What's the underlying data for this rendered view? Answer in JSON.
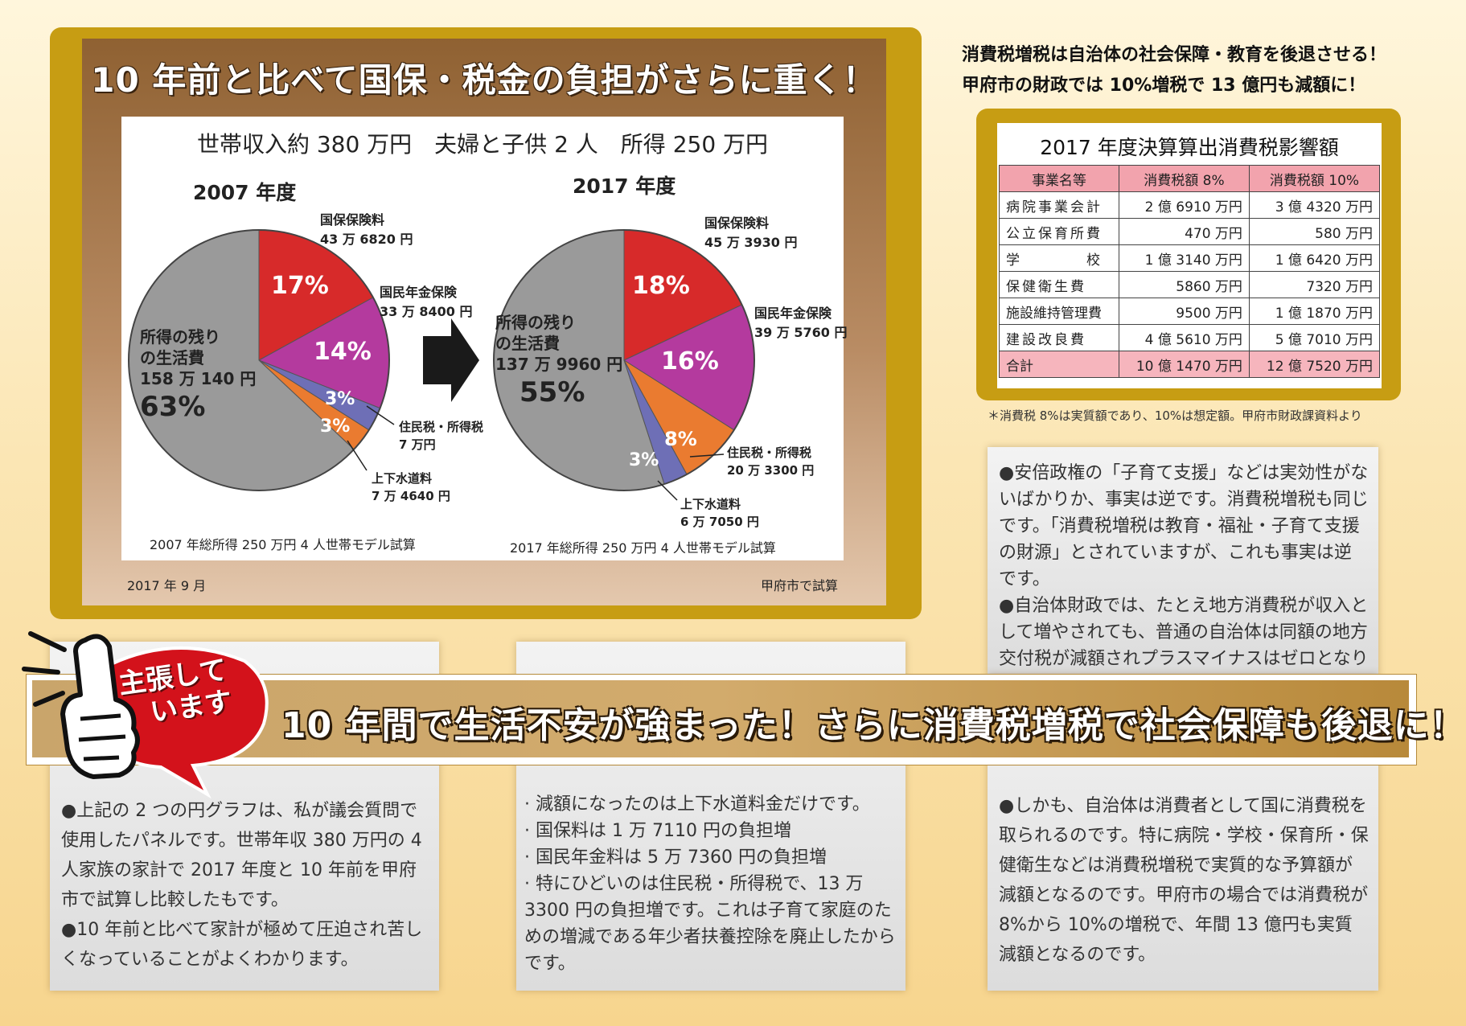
{
  "chart_panel": {
    "title": "10 年前と比べて国保・税金の負担がさらに重く！",
    "subtitle": "世帯収入約 380 万円　夫婦と子供 2 人　所得 250 万円",
    "date": "2017 年 9 月",
    "source": "甲府市で試算"
  },
  "chart_data": [
    {
      "type": "pie",
      "title": "2007 年度",
      "footnote": "2007 年総所得 250 万円 4 人世帯モデル試算",
      "slices": [
        {
          "label": "国保保険料",
          "amount": "43 万 6820 円",
          "percent": 17,
          "pct_label": "17%",
          "color": "#d72a2a"
        },
        {
          "label": "国民年金保険",
          "amount": "33 万 8400 円",
          "percent": 14,
          "pct_label": "14%",
          "color": "#b43a9e"
        },
        {
          "label": "住民税・所得税",
          "amount": "7 万円",
          "percent": 3,
          "pct_label": "3%",
          "color": "#6e6fb6"
        },
        {
          "label": "上下水道料",
          "amount": "7 万 4640 円",
          "percent": 3,
          "pct_label": "3%",
          "color": "#ea7b30"
        },
        {
          "label": "所得の残りの生活費",
          "amount": "158 万 140 円",
          "percent": 63,
          "pct_label": "63%",
          "color": "#9a9a9a"
        }
      ]
    },
    {
      "type": "pie",
      "title": "2017 年度",
      "footnote": "2017 年総所得 250 万円 4 人世帯モデル試算",
      "slices": [
        {
          "label": "国保保険料",
          "amount": "45 万 3930 円",
          "percent": 18,
          "pct_label": "18%",
          "color": "#d72a2a"
        },
        {
          "label": "国民年金保険",
          "amount": "39 万 5760 円",
          "percent": 16,
          "pct_label": "16%",
          "color": "#b43a9e"
        },
        {
          "label": "住民税・所得税",
          "amount": "20 万 3300 円",
          "percent": 8,
          "pct_label": "8%",
          "color": "#ea7b30"
        },
        {
          "label": "上下水道料",
          "amount": "6 万 7050 円",
          "percent": 3,
          "pct_label": "3%",
          "color": "#6e6fb6"
        },
        {
          "label": "所得の残りの生活費",
          "amount": "137 万 9960 円",
          "percent": 55,
          "pct_label": "55%",
          "color": "#9a9a9a"
        }
      ]
    }
  ],
  "pie_labels": {
    "remain_l1": "所得の残り",
    "remain_l2": "の生活費"
  },
  "warning": {
    "line1": "消費税増税は自治体の社会保障・教育を後退させる！",
    "line2": "甲府市の財政では 10%増税で 13 億円も減額に！"
  },
  "table": {
    "title": "2017 年度決算算出消費税影響額",
    "headers": [
      "事業名等",
      "消費税額 8%",
      "消費税額 10%"
    ],
    "rows": [
      [
        "病院事業会計",
        "2 億 6910 万円",
        "3 億 4320 万円"
      ],
      [
        "公立保育所費",
        "470 万円",
        "580 万円"
      ],
      [
        "学　　　　校",
        "1 億 3140 万円",
        "1 億 6420 万円"
      ],
      [
        "保健衛生費",
        "5860 万円",
        "7320 万円"
      ],
      [
        "施設維持管理費",
        "9500 万円",
        "1 億 1870 万円"
      ],
      [
        "建設改良費",
        "4 億 5610 万円",
        "5 億 7010 万円"
      ]
    ],
    "total": [
      "合計",
      "10 億 1470 万円",
      "12 億 7520 万円"
    ],
    "note": "＊消費税 8%は実質額であり、10%は想定額。甲府市財政課資料より"
  },
  "right_box_top": [
    "●安倍政権の「子育て支援」などは実効性がないばかりか、事実は逆です。消費税増税も同じです。「消費税増税は教育・福祉・子育て支援の財源」とされていますが、これも事実は逆です。",
    "●自治体財政では、たとえ地方消費税が収入として増やされても、普通の自治体は同額の地方交付税が減額されプラスマイナスはゼロとなります。"
  ],
  "banner": {
    "badge_l1": "主張して",
    "badge_l2": "います",
    "text": "10 年間で生活不安が強まった！さらに消費税増税で社会保障も後退に！"
  },
  "left_box": [
    "●上記の 2 つの円グラフは、私が議会質問で使用したパネルです。世帯年収 380 万円の 4 人家族の家計で 2017 年度と 10 年前を甲府市で試算し比較したもです。",
    "●10 年前と比べて家計が極めて圧迫され苦しくなっていることがよくわかります。"
  ],
  "middle_box": [
    "· 減額になったのは上下水道料金だけです。",
    "· 国保料は 1 万 7110 円の負担増",
    "· 国民年金料は 5 万 7360 円の負担増",
    "· 特にひどいのは住民税・所得税で、13 万 3300 円の負担増です。これは子育て家庭のための増減である年少者扶養控除を廃止したからです。"
  ],
  "right_box_bottom": [
    "●しかも、自治体は消費者として国に消費税を取られるのです。特に病院・学校・保育所・保健衛生などは消費税増税で実質的な予算額が減額となるのです。甲府市の場合では消費税が 8%から 10%の増税で、年間 13 億円も実質減額となるのです。"
  ]
}
